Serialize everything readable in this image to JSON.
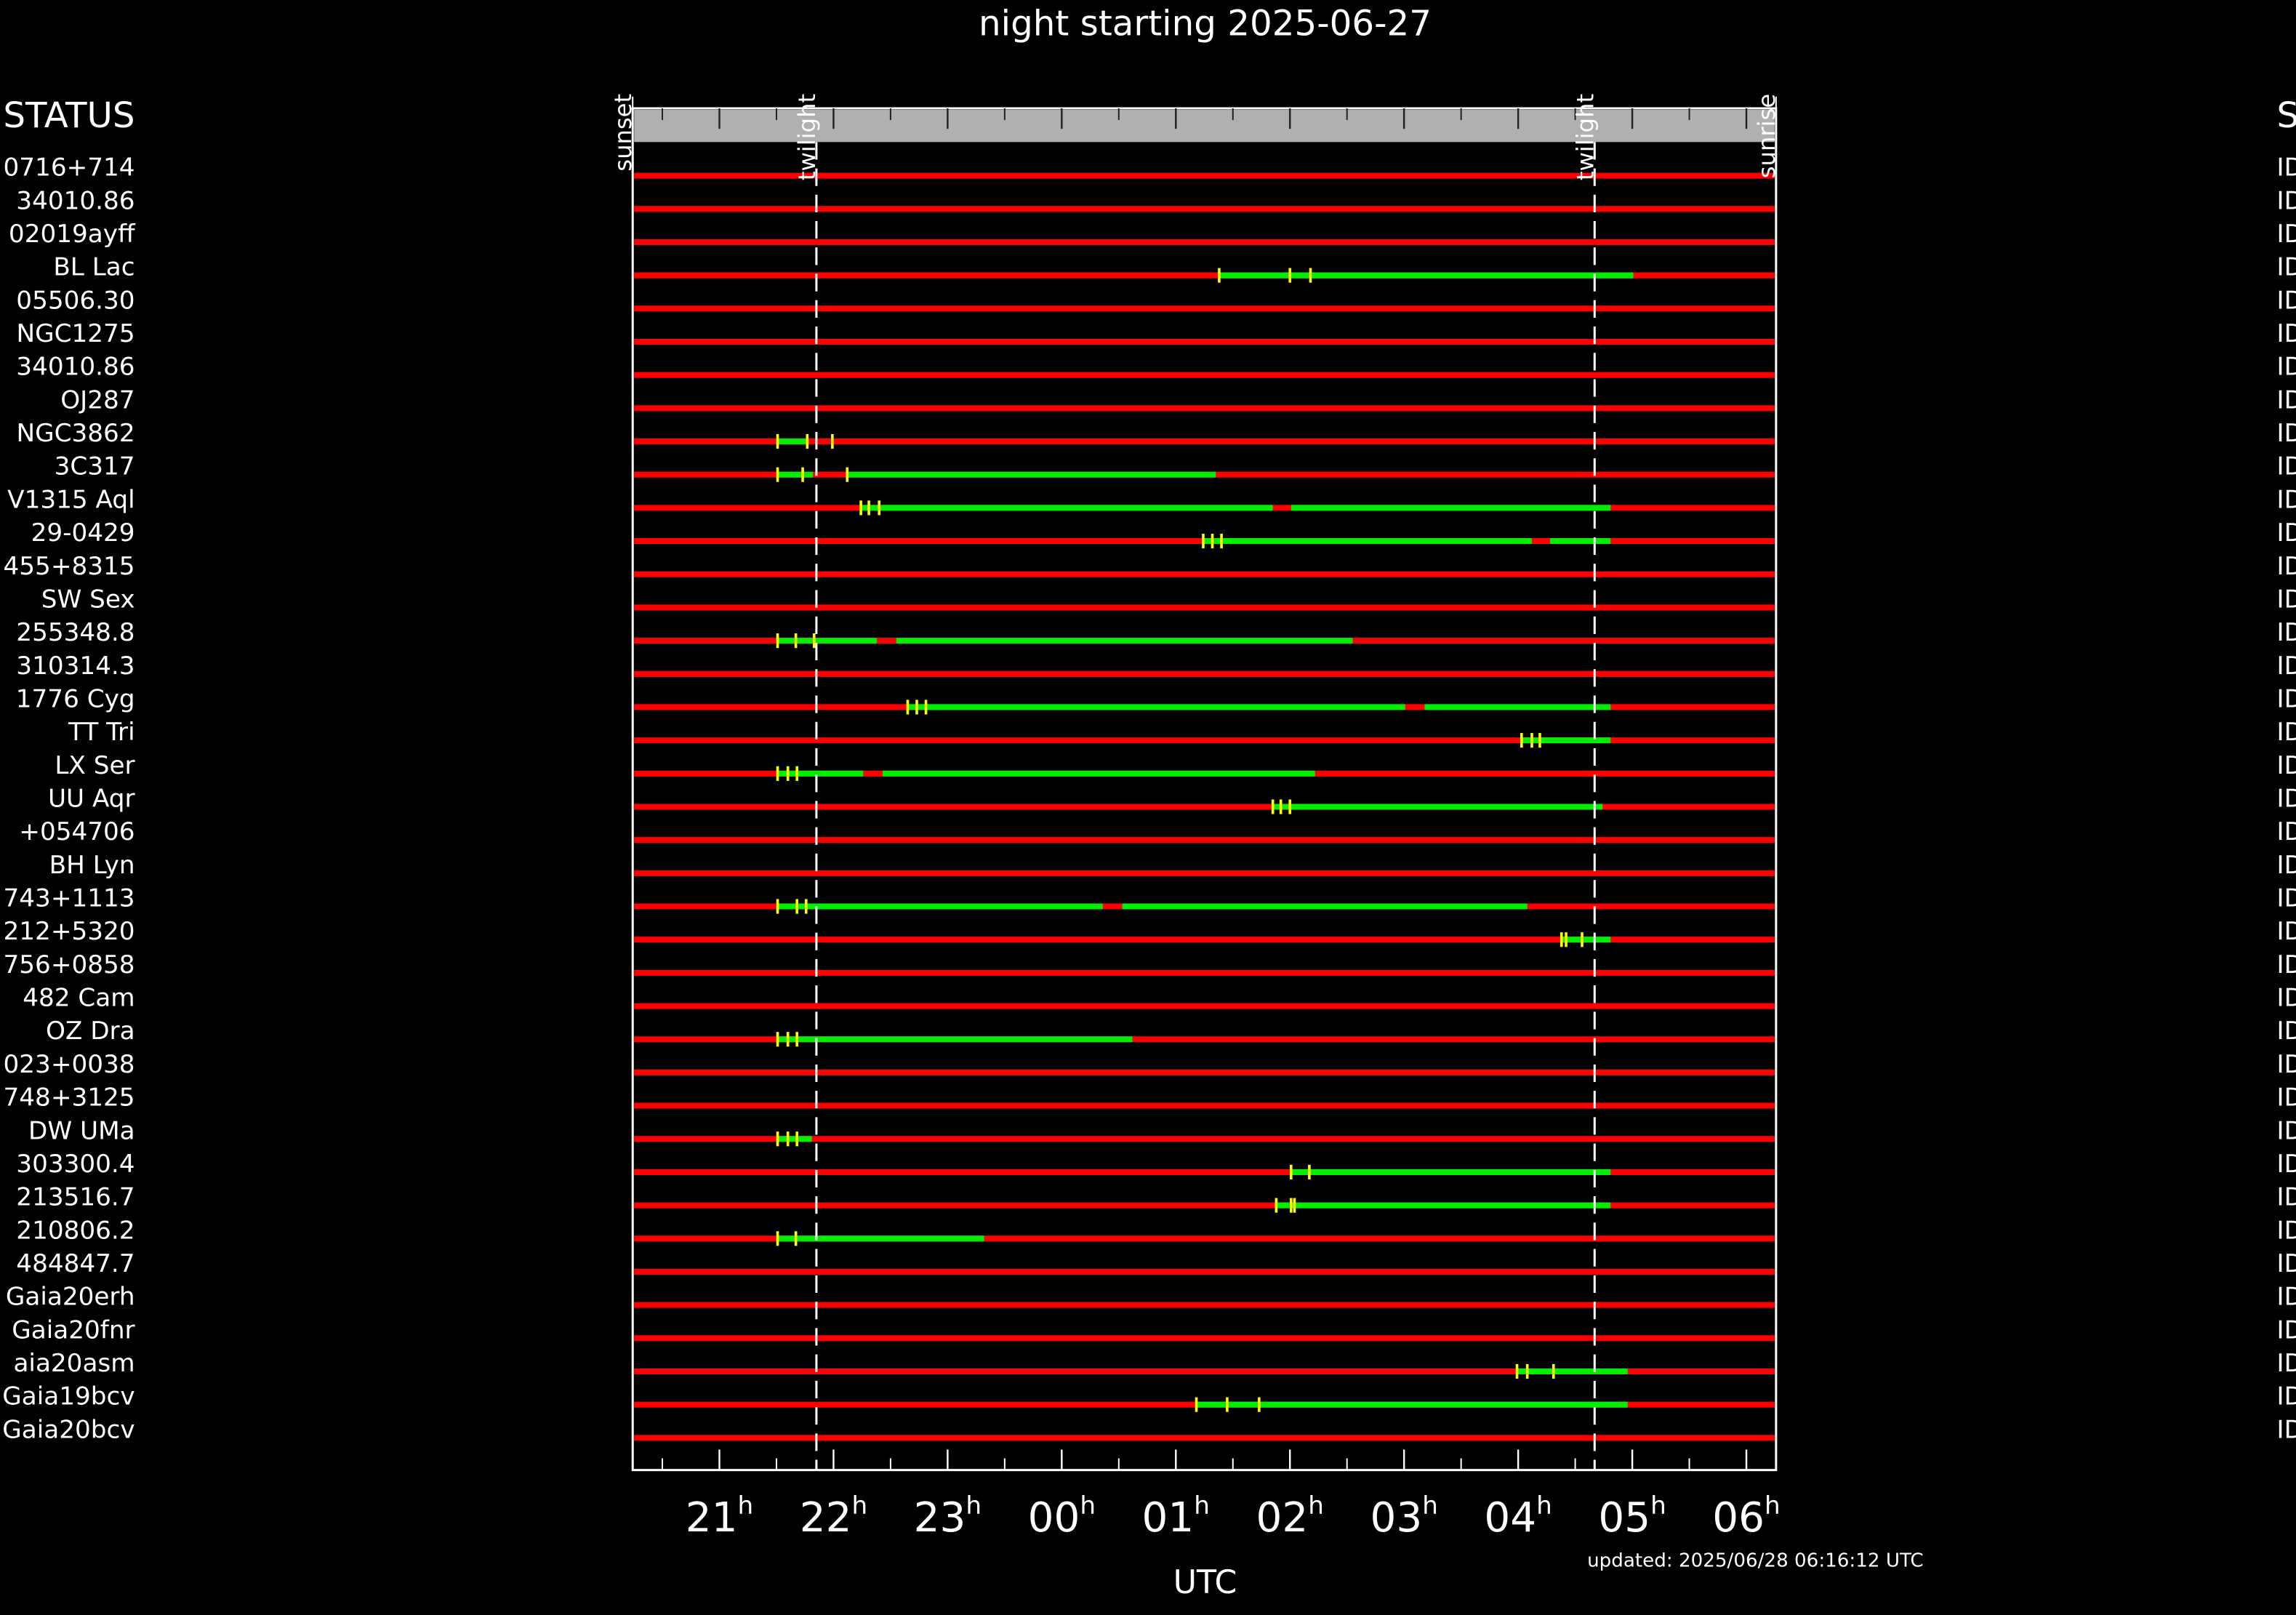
{
  "chart_data": {
    "type": "timeline",
    "title": "night starting 2025-06-27",
    "xlabel": "UTC",
    "status_header": "STATUS",
    "status_right_header": "S",
    "status_label": "ID",
    "updated": "updated: 2025/06/28 06:16:12 UTC",
    "xlim": [
      20.24,
      30.26
    ],
    "xticks": [
      {
        "value": 21,
        "label": "21"
      },
      {
        "value": 22,
        "label": "22"
      },
      {
        "value": 23,
        "label": "23"
      },
      {
        "value": 24,
        "label": "00"
      },
      {
        "value": 25,
        "label": "01"
      },
      {
        "value": 26,
        "label": "02"
      },
      {
        "value": 27,
        "label": "03"
      },
      {
        "value": 28,
        "label": "04"
      },
      {
        "value": 29,
        "label": "05"
      },
      {
        "value": 30,
        "label": "06"
      }
    ],
    "xtick_unit": "h",
    "events": [
      {
        "name": "sunset",
        "x": 20.24,
        "dashed": false
      },
      {
        "name": "twilight",
        "x": 21.85,
        "dashed": true
      },
      {
        "name": "twilight",
        "x": 28.67,
        "dashed": true
      },
      {
        "name": "sunrise",
        "x": 30.26,
        "dashed": false
      }
    ],
    "colors": {
      "unobservable": "#ff0000",
      "observable": "#00ee00",
      "marker": "#ffff00",
      "header_bar": "#b0b0b0"
    },
    "rows": [
      {
        "name": "0716+714",
        "windows": [],
        "markers": []
      },
      {
        "name": "34010.86",
        "windows": [],
        "markers": []
      },
      {
        "name": "02019ayff",
        "windows": [],
        "markers": []
      },
      {
        "name": "BL Lac",
        "windows": [
          [
            25.38,
            29.01
          ]
        ],
        "markers": [
          25.38,
          26.0,
          26.18
        ]
      },
      {
        "name": "05506.30",
        "windows": [],
        "markers": []
      },
      {
        "name": "NGC1275",
        "windows": [],
        "markers": []
      },
      {
        "name": "34010.86",
        "windows": [],
        "markers": []
      },
      {
        "name": "OJ287",
        "windows": [],
        "markers": []
      },
      {
        "name": "NGC3862",
        "windows": [
          [
            21.51,
            21.77
          ]
        ],
        "markers": [
          21.51,
          21.77,
          21.99
        ]
      },
      {
        "name": "3C317",
        "windows": [
          [
            21.51,
            21.82
          ],
          [
            22.12,
            25.35
          ]
        ],
        "markers": [
          21.51,
          21.73,
          22.12
        ]
      },
      {
        "name": "V1315 Aql",
        "windows": [
          [
            22.24,
            25.85
          ],
          [
            26.01,
            28.81
          ]
        ],
        "markers": [
          22.24,
          22.31,
          22.4
        ]
      },
      {
        "name": "29-0429",
        "windows": [
          [
            25.24,
            28.12
          ],
          [
            28.28,
            28.81
          ]
        ],
        "markers": [
          25.24,
          25.32,
          25.4
        ]
      },
      {
        "name": "455+8315",
        "windows": [],
        "markers": []
      },
      {
        "name": "SW Sex",
        "windows": [],
        "markers": []
      },
      {
        "name": "255348.8",
        "windows": [
          [
            21.51,
            22.38
          ],
          [
            22.55,
            26.55
          ]
        ],
        "markers": [
          21.51,
          21.67,
          21.83
        ]
      },
      {
        "name": "310314.3",
        "windows": [],
        "markers": []
      },
      {
        "name": "1776 Cyg",
        "windows": [
          [
            22.65,
            27.01
          ],
          [
            27.18,
            28.81
          ]
        ],
        "markers": [
          22.65,
          22.73,
          22.81
        ]
      },
      {
        "name": "TT Tri",
        "windows": [
          [
            28.03,
            28.81
          ]
        ],
        "markers": [
          28.03,
          28.12,
          28.19
        ]
      },
      {
        "name": "LX Ser",
        "windows": [
          [
            21.51,
            22.26
          ],
          [
            22.43,
            26.22
          ]
        ],
        "markers": [
          21.51,
          21.6,
          21.68
        ]
      },
      {
        "name": "UU Aqr",
        "windows": [
          [
            25.85,
            28.74
          ]
        ],
        "markers": [
          25.85,
          25.92,
          26.0
        ]
      },
      {
        "name": "+054706",
        "windows": [],
        "markers": []
      },
      {
        "name": "BH Lyn",
        "windows": [],
        "markers": []
      },
      {
        "name": "743+1113",
        "windows": [
          [
            21.51,
            24.36
          ],
          [
            24.53,
            28.08
          ]
        ],
        "markers": [
          21.51,
          21.68,
          21.76
        ]
      },
      {
        "name": "212+5320",
        "windows": [
          [
            28.38,
            28.81
          ]
        ],
        "markers": [
          28.38,
          28.42,
          28.56
        ]
      },
      {
        "name": "756+0858",
        "windows": [],
        "markers": []
      },
      {
        "name": "482 Cam",
        "windows": [],
        "markers": []
      },
      {
        "name": "OZ Dra",
        "windows": [
          [
            21.51,
            24.62
          ]
        ],
        "markers": [
          21.51,
          21.6,
          21.68
        ]
      },
      {
        "name": "023+0038",
        "windows": [],
        "markers": []
      },
      {
        "name": "748+3125",
        "windows": [],
        "markers": []
      },
      {
        "name": "DW UMa",
        "windows": [
          [
            21.51,
            21.81
          ]
        ],
        "markers": [
          21.51,
          21.6,
          21.68
        ]
      },
      {
        "name": "303300.4",
        "windows": [
          [
            26.01,
            28.81
          ]
        ],
        "markers": [
          26.01,
          26.17
        ]
      },
      {
        "name": "213516.7",
        "windows": [
          [
            25.88,
            28.81
          ]
        ],
        "markers": [
          25.88,
          26.01,
          26.04
        ]
      },
      {
        "name": "210806.2",
        "windows": [
          [
            21.51,
            23.32
          ]
        ],
        "markers": [
          21.51,
          21.67
        ]
      },
      {
        "name": "484847.7",
        "windows": [],
        "markers": []
      },
      {
        "name": "Gaia20erh",
        "windows": [],
        "markers": []
      },
      {
        "name": "Gaia20fnr",
        "windows": [],
        "markers": []
      },
      {
        "name": "aia20asm",
        "windows": [
          [
            27.99,
            28.96
          ]
        ],
        "markers": [
          27.99,
          28.08,
          28.31
        ]
      },
      {
        "name": "Gaia19bcv",
        "windows": [
          [
            25.18,
            28.96
          ]
        ],
        "markers": [
          25.18,
          25.45,
          25.73
        ]
      },
      {
        "name": "Gaia20bcv",
        "windows": [],
        "markers": []
      }
    ]
  }
}
